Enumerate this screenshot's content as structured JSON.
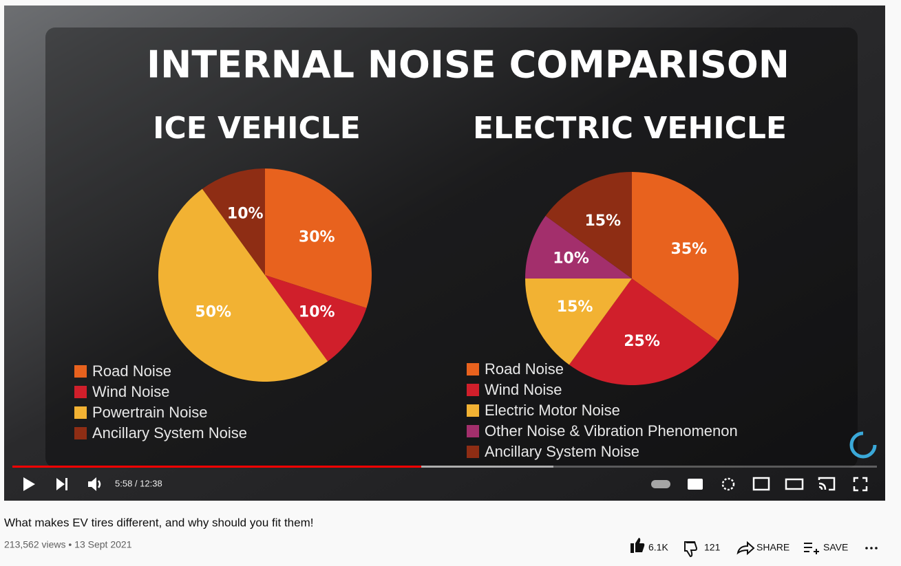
{
  "player": {
    "overlay_title": "INTERNAL NOISE COMPARISON",
    "time": "5:58 / 12:38"
  },
  "chart_data": [
    {
      "type": "pie",
      "title": "ICE VEHICLE",
      "categories": [
        "Road Noise",
        "Wind Noise",
        "Powertrain Noise",
        "Ancillary System Noise"
      ],
      "values": [
        30,
        10,
        50,
        10
      ],
      "value_labels": [
        "30%",
        "10%",
        "50%",
        "10%"
      ],
      "colors": [
        "#e8621e",
        "#d01f2b",
        "#f2b233",
        "#8e2d14"
      ]
    },
    {
      "type": "pie",
      "title": "ELECTRIC VEHICLE",
      "categories": [
        "Road Noise",
        "Wind Noise",
        "Electric Motor Noise",
        "Other Noise & Vibration Phenomenon",
        "Ancillary System Noise"
      ],
      "values": [
        35,
        25,
        15,
        10,
        15
      ],
      "value_labels": [
        "35%",
        "25%",
        "15%",
        "10%",
        "15%"
      ],
      "colors": [
        "#e8621e",
        "#d01f2b",
        "#f2b233",
        "#a32f6c",
        "#8e2d14"
      ]
    }
  ],
  "video": {
    "title": "What makes EV tires different, and why should you fit them!",
    "meta": "213,562 views • 13 Sept 2021",
    "likes": "6.1K",
    "dislikes": "121",
    "share": "SHARE",
    "save": "SAVE"
  }
}
